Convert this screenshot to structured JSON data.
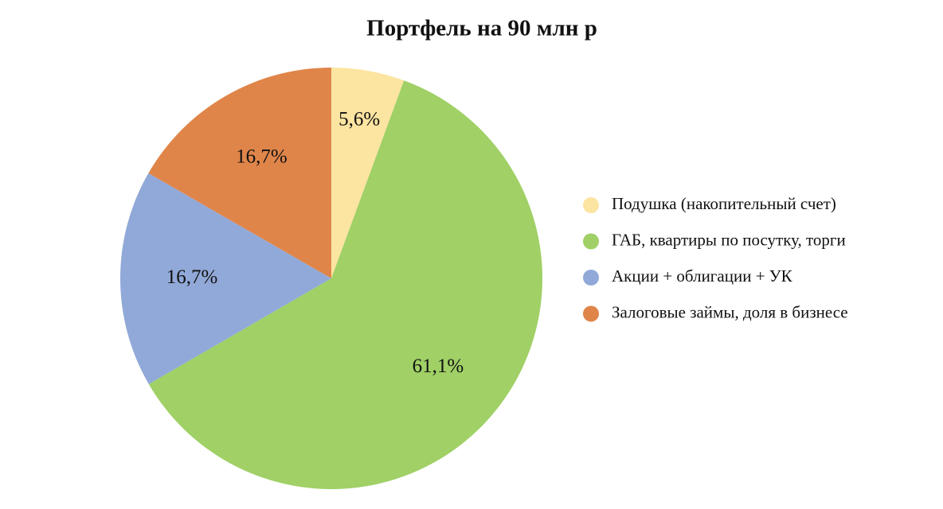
{
  "chart_data": {
    "type": "pie",
    "title": "Портфель на 90 млн р",
    "categories": [
      "Подушка (накопительный счет)",
      "ГАБ, квартиры по посутку, торги",
      "Акции + облигации + УК",
      "Залоговые займы, доля в бизнесе"
    ],
    "values": [
      5.6,
      61.1,
      16.7,
      16.7
    ],
    "value_labels": [
      "5,6%",
      "61,1%",
      "16,7%",
      "16,7%"
    ],
    "colors": [
      "#fce4a1",
      "#a0d066",
      "#91a9d8",
      "#e0854a"
    ],
    "legend": "right"
  }
}
